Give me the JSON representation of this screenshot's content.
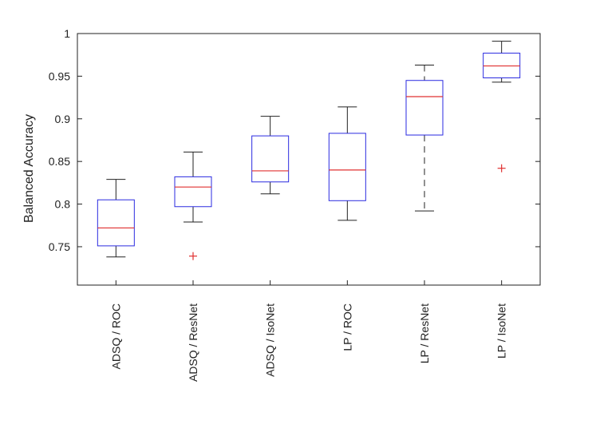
{
  "chart_data": {
    "type": "box",
    "title": "",
    "xlabel": "",
    "ylabel": "Balanced Accuracy",
    "ylim": [
      0.705,
      1.0
    ],
    "yticks": [
      0.75,
      0.8,
      0.85,
      0.9,
      0.95,
      1.0
    ],
    "ytick_labels": [
      "0.75",
      "0.8",
      "0.85",
      "0.9",
      "0.95",
      "1"
    ],
    "grid": false,
    "categories": [
      "ADSQ / ROC",
      "ADSQ / ResNet",
      "ADSQ / IsoNet",
      "LP / ROC",
      "LP / ResNet",
      "LP / IsoNet"
    ],
    "boxes": [
      {
        "whisker_low": 0.738,
        "q1": 0.751,
        "median": 0.772,
        "q3": 0.805,
        "whisker_high": 0.829,
        "outliers": []
      },
      {
        "whisker_low": 0.779,
        "q1": 0.797,
        "median": 0.82,
        "q3": 0.832,
        "whisker_high": 0.861,
        "outliers": [
          0.739
        ]
      },
      {
        "whisker_low": 0.812,
        "q1": 0.826,
        "median": 0.839,
        "q3": 0.88,
        "whisker_high": 0.903,
        "outliers": []
      },
      {
        "whisker_low": 0.781,
        "q1": 0.804,
        "median": 0.84,
        "q3": 0.883,
        "whisker_high": 0.914,
        "outliers": []
      },
      {
        "whisker_low": 0.792,
        "q1": 0.881,
        "median": 0.926,
        "q3": 0.945,
        "whisker_high": 0.963,
        "outliers": []
      },
      {
        "whisker_low": 0.943,
        "q1": 0.948,
        "median": 0.962,
        "q3": 0.977,
        "whisker_high": 0.991,
        "outliers": [
          0.842
        ]
      }
    ],
    "colors": {
      "box": "#2a2ae0",
      "median": "#e03030",
      "whisker": "#222222",
      "outlier": "#e03030",
      "axis": "#222222"
    }
  }
}
